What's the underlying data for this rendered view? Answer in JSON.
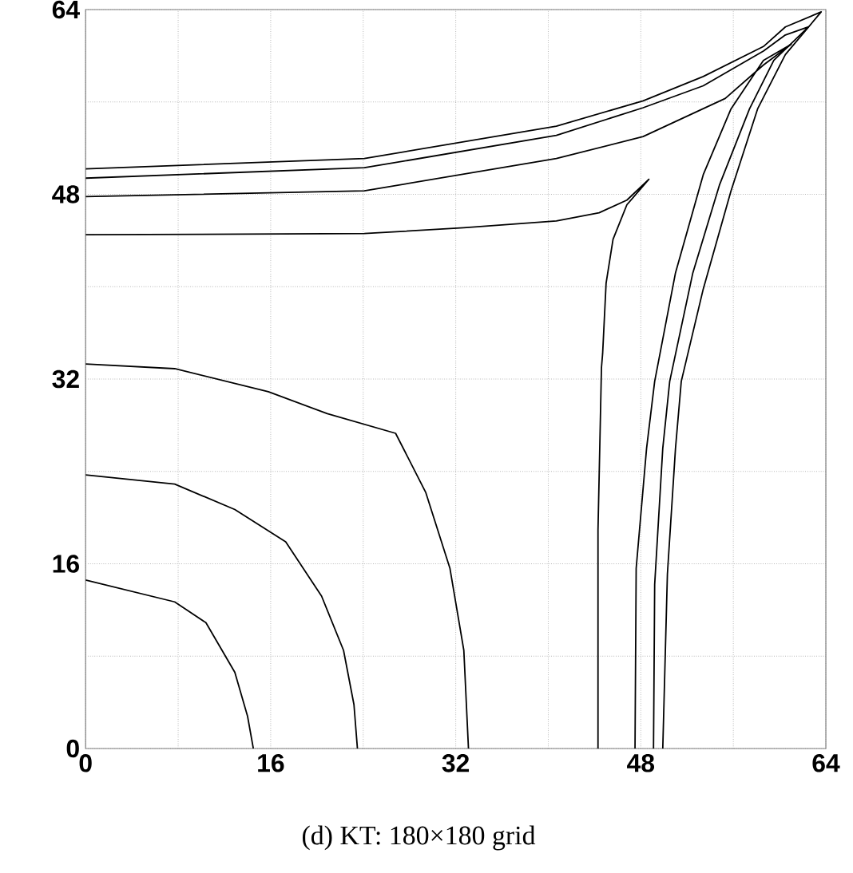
{
  "chart_data": {
    "type": "line",
    "title": "(d) KT: 180×180 grid",
    "xlim": [
      0,
      64
    ],
    "ylim": [
      0,
      64
    ],
    "xticks": [
      0,
      {
        "value": 8,
        "label": null
      },
      16,
      {
        "value": 24,
        "label": null
      },
      32,
      {
        "value": 40,
        "label": null
      },
      48,
      {
        "value": 56,
        "label": null
      },
      64
    ],
    "yticks": [
      0,
      {
        "value": 8,
        "label": null
      },
      16,
      {
        "value": 24,
        "label": null
      },
      32,
      {
        "value": 40,
        "label": null
      },
      48,
      {
        "value": 56,
        "label": null
      },
      64
    ],
    "grid": true,
    "marker": "none",
    "line_style": "solid",
    "series": [
      {
        "color": "#000000",
        "x": [
          0,
          7.7,
          10.4,
          12.9,
          14.0,
          14.5
        ],
        "values": [
          14.6,
          12.7,
          10.9,
          6.6,
          2.8,
          0
        ]
      },
      {
        "color": "#000000",
        "x": [
          0,
          7.7,
          12.9,
          17.3,
          20.4,
          22.3,
          23.2,
          23.5
        ],
        "values": [
          23.7,
          22.9,
          20.7,
          17.9,
          13.2,
          8.5,
          3.8,
          0
        ]
      },
      {
        "color": "#000000",
        "x": [
          0,
          7.7,
          15.8,
          20.9,
          26.8,
          29.4,
          31.5,
          32.7,
          33.1
        ],
        "values": [
          33.3,
          32.9,
          30.9,
          29.0,
          27.3,
          22.2,
          15.6,
          8.5,
          0
        ]
      },
      {
        "color": "#000000",
        "x": [
          0,
          24.1,
          32.7,
          40.7,
          44.4,
          46.8,
          48.7,
          46.8,
          45.6,
          45.0,
          44.7,
          44.6,
          44.3,
          44.3
        ],
        "values": [
          44.5,
          44.6,
          45.1,
          45.7,
          46.4,
          47.5,
          49.3,
          47.1,
          44.1,
          40.3,
          34.2,
          33.0,
          18.9,
          0
        ]
      },
      {
        "color": "#000000",
        "x": [
          0,
          24.1,
          40.7,
          48.2,
          55.3,
          58.6,
          61.0,
          58.6,
          55.8,
          53.4,
          51.0,
          49.2,
          48.5,
          47.6,
          47.5
        ],
        "values": [
          47.8,
          48.3,
          51.1,
          53.0,
          56.3,
          59.2,
          61.0,
          59.6,
          55.4,
          49.7,
          41.2,
          31.8,
          26.0,
          15.6,
          0
        ]
      },
      {
        "color": "#000000",
        "x": [
          0,
          24.1,
          40.7,
          48.2,
          53.4,
          58.6,
          60.5,
          62.5,
          59.5,
          57.4,
          54.8,
          52.5,
          50.5,
          49.9,
          49.2,
          49.1
        ],
        "values": [
          49.4,
          50.3,
          53.1,
          55.5,
          57.4,
          60.4,
          61.8,
          62.5,
          59.6,
          55.4,
          48.8,
          41.2,
          31.8,
          26.0,
          14.2,
          0
        ]
      },
      {
        "color": "#000000",
        "x": [
          0,
          24.1,
          40.7,
          48.2,
          53.4,
          58.6,
          60.5,
          63.6,
          60.5,
          58.1,
          55.8,
          53.4,
          51.5,
          51.0,
          50.3,
          49.9
        ],
        "values": [
          50.2,
          51.1,
          53.9,
          56.1,
          58.2,
          60.8,
          62.5,
          63.8,
          60.1,
          55.4,
          48.3,
          39.8,
          31.8,
          26.0,
          15.1,
          0
        ]
      }
    ]
  }
}
